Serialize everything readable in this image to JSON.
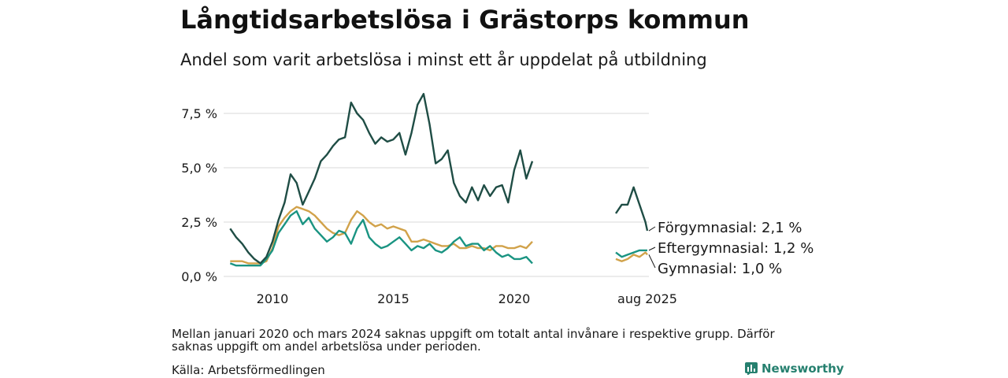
{
  "header": {
    "title": "Långtidsarbetslösa i Grästorps kommun",
    "subtitle": "Andel som varit arbetslösa i minst ett år uppdelat på utbildning"
  },
  "footer": {
    "note": "Mellan januari 2020 och mars 2024 saknas uppgift om totalt antal invånare i respektive grupp. Därför saknas uppgift om andel arbetslösa under perioden.",
    "source": "Källa: Arbetsförmedlingen",
    "brand": "Newsworthy",
    "brand_icon": "newsworthy-logo-icon"
  },
  "chart_data": {
    "type": "line",
    "title": "Långtidsarbetslösa i Grästorps kommun",
    "subtitle": "Andel som varit arbetslösa i minst ett år uppdelat på utbildning",
    "xlabel": "",
    "ylabel": "",
    "y_unit": "%",
    "ylim": [
      0,
      8.6
    ],
    "y_ticks": [
      0,
      2.5,
      5.0,
      7.5
    ],
    "y_tick_labels": [
      "0,0 %",
      "2,5 %",
      "5,0 %",
      "7,5 %"
    ],
    "x_ticks": [
      2010,
      2015,
      2020
    ],
    "x_tick_labels": [
      "2010",
      "2015",
      "2020"
    ],
    "x_end_label": "aug 2025",
    "x_axis_note": "x values in decimal years; the axis has a break between 2020 and the last segment (2024–2025)",
    "grid": true,
    "legend": "direct labels at right end of lines",
    "gap": [
      "2021-01",
      "2024-03"
    ],
    "colors": {
      "Förgymnasial": "#1f4d45",
      "Eftergymnasial": "#1a9482",
      "Gymnasial": "#d1a24a"
    },
    "series": [
      {
        "name": "Förgymnasial",
        "end_label": "Förgymnasial: 2,1 %",
        "segments": [
          [
            [
              2008.25,
              2.2
            ],
            [
              2008.5,
              1.8
            ],
            [
              2008.75,
              1.5
            ],
            [
              2009.0,
              1.1
            ],
            [
              2009.25,
              0.8
            ],
            [
              2009.5,
              0.6
            ],
            [
              2009.75,
              0.9
            ],
            [
              2010.0,
              1.6
            ],
            [
              2010.25,
              2.6
            ],
            [
              2010.5,
              3.4
            ],
            [
              2010.75,
              4.7
            ],
            [
              2011.0,
              4.3
            ],
            [
              2011.25,
              3.3
            ],
            [
              2011.5,
              3.9
            ],
            [
              2011.75,
              4.5
            ],
            [
              2012.0,
              5.3
            ],
            [
              2012.25,
              5.6
            ],
            [
              2012.5,
              6.0
            ],
            [
              2012.75,
              6.3
            ],
            [
              2013.0,
              6.4
            ],
            [
              2013.25,
              8.0
            ],
            [
              2013.5,
              7.5
            ],
            [
              2013.75,
              7.2
            ],
            [
              2014.0,
              6.6
            ],
            [
              2014.25,
              6.1
            ],
            [
              2014.5,
              6.4
            ],
            [
              2014.75,
              6.2
            ],
            [
              2015.0,
              6.3
            ],
            [
              2015.25,
              6.6
            ],
            [
              2015.5,
              5.6
            ],
            [
              2015.75,
              6.6
            ],
            [
              2016.0,
              7.9
            ],
            [
              2016.25,
              8.4
            ],
            [
              2016.5,
              7.0
            ],
            [
              2016.75,
              5.2
            ],
            [
              2017.0,
              5.4
            ],
            [
              2017.25,
              5.8
            ],
            [
              2017.5,
              4.3
            ],
            [
              2017.75,
              3.7
            ],
            [
              2018.0,
              3.4
            ],
            [
              2018.25,
              4.1
            ],
            [
              2018.5,
              3.5
            ],
            [
              2018.75,
              4.2
            ],
            [
              2019.0,
              3.7
            ],
            [
              2019.25,
              4.1
            ],
            [
              2019.5,
              4.2
            ],
            [
              2019.75,
              3.4
            ],
            [
              2020.0,
              4.9
            ],
            [
              2020.25,
              5.8
            ],
            [
              2020.5,
              4.5
            ],
            [
              2020.75,
              5.3
            ]
          ],
          [
            [
              2024.25,
              2.9
            ],
            [
              2024.5,
              3.3
            ],
            [
              2024.75,
              3.3
            ],
            [
              2025.0,
              4.1
            ],
            [
              2025.25,
              3.3
            ],
            [
              2025.5,
              2.5
            ],
            [
              2025.58,
              2.1
            ]
          ]
        ]
      },
      {
        "name": "Eftergymnasial",
        "end_label": "Eftergymnasial: 1,2 %",
        "segments": [
          [
            [
              2008.25,
              0.6
            ],
            [
              2008.5,
              0.5
            ],
            [
              2008.75,
              0.5
            ],
            [
              2009.0,
              0.5
            ],
            [
              2009.25,
              0.5
            ],
            [
              2009.5,
              0.5
            ],
            [
              2009.75,
              0.8
            ],
            [
              2010.0,
              1.2
            ],
            [
              2010.25,
              2.0
            ],
            [
              2010.5,
              2.4
            ],
            [
              2010.75,
              2.8
            ],
            [
              2011.0,
              3.0
            ],
            [
              2011.25,
              2.4
            ],
            [
              2011.5,
              2.7
            ],
            [
              2011.75,
              2.2
            ],
            [
              2012.0,
              1.9
            ],
            [
              2012.25,
              1.6
            ],
            [
              2012.5,
              1.8
            ],
            [
              2012.75,
              2.1
            ],
            [
              2013.0,
              2.0
            ],
            [
              2013.25,
              1.5
            ],
            [
              2013.5,
              2.2
            ],
            [
              2013.75,
              2.6
            ],
            [
              2014.0,
              1.8
            ],
            [
              2014.25,
              1.5
            ],
            [
              2014.5,
              1.3
            ],
            [
              2014.75,
              1.4
            ],
            [
              2015.0,
              1.6
            ],
            [
              2015.25,
              1.8
            ],
            [
              2015.5,
              1.5
            ],
            [
              2015.75,
              1.2
            ],
            [
              2016.0,
              1.4
            ],
            [
              2016.25,
              1.3
            ],
            [
              2016.5,
              1.5
            ],
            [
              2016.75,
              1.2
            ],
            [
              2017.0,
              1.1
            ],
            [
              2017.25,
              1.3
            ],
            [
              2017.5,
              1.6
            ],
            [
              2017.75,
              1.8
            ],
            [
              2018.0,
              1.4
            ],
            [
              2018.25,
              1.5
            ],
            [
              2018.5,
              1.5
            ],
            [
              2018.75,
              1.2
            ],
            [
              2019.0,
              1.4
            ],
            [
              2019.25,
              1.1
            ],
            [
              2019.5,
              0.9
            ],
            [
              2019.75,
              1.0
            ],
            [
              2020.0,
              0.8
            ],
            [
              2020.25,
              0.8
            ],
            [
              2020.5,
              0.9
            ],
            [
              2020.75,
              0.6
            ]
          ],
          [
            [
              2024.25,
              1.1
            ],
            [
              2024.5,
              0.9
            ],
            [
              2024.75,
              1.0
            ],
            [
              2025.0,
              1.1
            ],
            [
              2025.25,
              1.2
            ],
            [
              2025.5,
              1.2
            ],
            [
              2025.58,
              1.2
            ]
          ]
        ]
      },
      {
        "name": "Gymnasial",
        "end_label": "Gymnasial: 1,0 %",
        "segments": [
          [
            [
              2008.25,
              0.7
            ],
            [
              2008.5,
              0.7
            ],
            [
              2008.75,
              0.7
            ],
            [
              2009.0,
              0.6
            ],
            [
              2009.25,
              0.6
            ],
            [
              2009.5,
              0.6
            ],
            [
              2009.75,
              0.7
            ],
            [
              2010.0,
              1.3
            ],
            [
              2010.25,
              2.3
            ],
            [
              2010.5,
              2.7
            ],
            [
              2010.75,
              3.0
            ],
            [
              2011.0,
              3.2
            ],
            [
              2011.25,
              3.1
            ],
            [
              2011.5,
              3.0
            ],
            [
              2011.75,
              2.8
            ],
            [
              2012.0,
              2.5
            ],
            [
              2012.25,
              2.2
            ],
            [
              2012.5,
              2.0
            ],
            [
              2012.75,
              1.9
            ],
            [
              2013.0,
              2.0
            ],
            [
              2013.25,
              2.6
            ],
            [
              2013.5,
              3.0
            ],
            [
              2013.75,
              2.8
            ],
            [
              2014.0,
              2.5
            ],
            [
              2014.25,
              2.3
            ],
            [
              2014.5,
              2.4
            ],
            [
              2014.75,
              2.2
            ],
            [
              2015.0,
              2.3
            ],
            [
              2015.25,
              2.2
            ],
            [
              2015.5,
              2.1
            ],
            [
              2015.75,
              1.6
            ],
            [
              2016.0,
              1.6
            ],
            [
              2016.25,
              1.7
            ],
            [
              2016.5,
              1.6
            ],
            [
              2016.75,
              1.5
            ],
            [
              2017.0,
              1.4
            ],
            [
              2017.25,
              1.4
            ],
            [
              2017.5,
              1.5
            ],
            [
              2017.75,
              1.3
            ],
            [
              2018.0,
              1.3
            ],
            [
              2018.25,
              1.4
            ],
            [
              2018.5,
              1.3
            ],
            [
              2018.75,
              1.3
            ],
            [
              2019.0,
              1.2
            ],
            [
              2019.25,
              1.4
            ],
            [
              2019.5,
              1.4
            ],
            [
              2019.75,
              1.3
            ],
            [
              2020.0,
              1.3
            ],
            [
              2020.25,
              1.4
            ],
            [
              2020.5,
              1.3
            ],
            [
              2020.75,
              1.6
            ]
          ],
          [
            [
              2024.25,
              0.8
            ],
            [
              2024.5,
              0.7
            ],
            [
              2024.75,
              0.8
            ],
            [
              2025.0,
              1.0
            ],
            [
              2025.25,
              0.9
            ],
            [
              2025.5,
              1.1
            ],
            [
              2025.58,
              1.0
            ]
          ]
        ]
      }
    ]
  }
}
